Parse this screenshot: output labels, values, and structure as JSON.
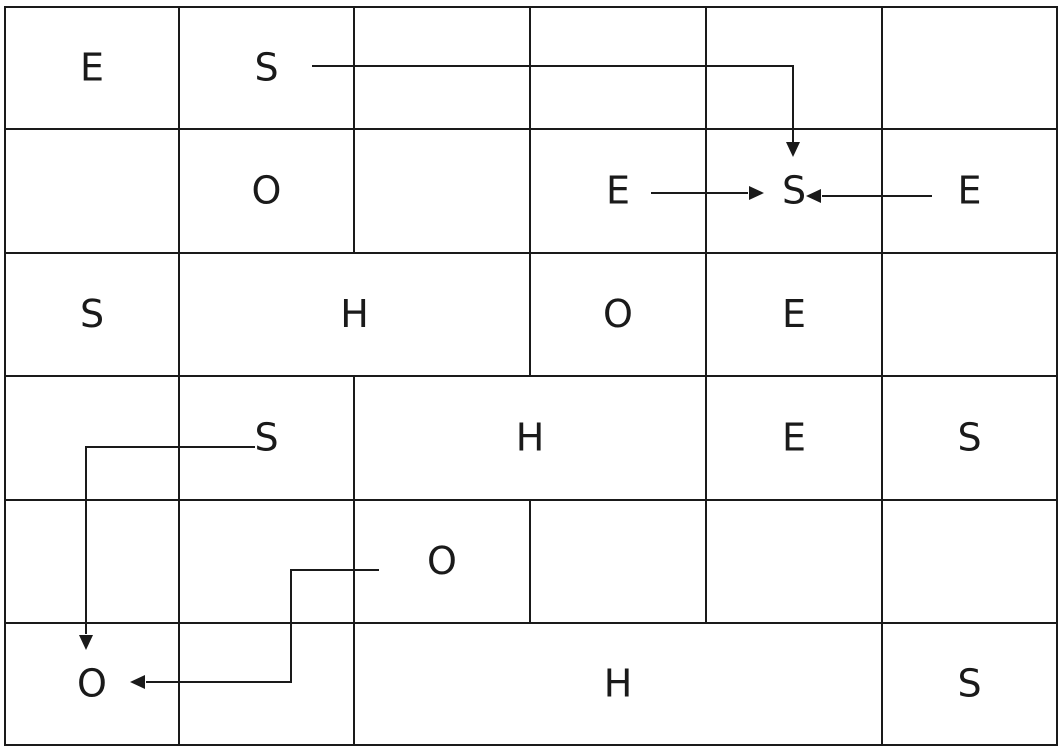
{
  "grid": {
    "rows": 6,
    "cols": 6,
    "line_color": "#1a1a1a",
    "text_color": "#1a1a1a",
    "background": "#ffffff",
    "cells": [
      {
        "id": "r0c0",
        "row": 0,
        "col": 0,
        "colspan": 1,
        "letter": "E"
      },
      {
        "id": "r0c1",
        "row": 0,
        "col": 1,
        "colspan": 1,
        "letter": "S"
      },
      {
        "id": "r0c2",
        "row": 0,
        "col": 2,
        "colspan": 1,
        "letter": ""
      },
      {
        "id": "r0c3",
        "row": 0,
        "col": 3,
        "colspan": 1,
        "letter": ""
      },
      {
        "id": "r0c4",
        "row": 0,
        "col": 4,
        "colspan": 1,
        "letter": ""
      },
      {
        "id": "r0c5",
        "row": 0,
        "col": 5,
        "colspan": 1,
        "letter": ""
      },
      {
        "id": "r1c0",
        "row": 1,
        "col": 0,
        "colspan": 1,
        "letter": ""
      },
      {
        "id": "r1c1",
        "row": 1,
        "col": 1,
        "colspan": 1,
        "letter": "O"
      },
      {
        "id": "r1c2",
        "row": 1,
        "col": 2,
        "colspan": 1,
        "letter": ""
      },
      {
        "id": "r1c3",
        "row": 1,
        "col": 3,
        "colspan": 1,
        "letter": "E"
      },
      {
        "id": "r1c4",
        "row": 1,
        "col": 4,
        "colspan": 1,
        "letter": "S"
      },
      {
        "id": "r1c5",
        "row": 1,
        "col": 5,
        "colspan": 1,
        "letter": "E"
      },
      {
        "id": "r2c0",
        "row": 2,
        "col": 0,
        "colspan": 1,
        "letter": "S"
      },
      {
        "id": "r2c1",
        "row": 2,
        "col": 1,
        "colspan": 2,
        "letter": "H"
      },
      {
        "id": "r2c3",
        "row": 2,
        "col": 3,
        "colspan": 1,
        "letter": "O"
      },
      {
        "id": "r2c4",
        "row": 2,
        "col": 4,
        "colspan": 1,
        "letter": "E"
      },
      {
        "id": "r2c5",
        "row": 2,
        "col": 5,
        "colspan": 1,
        "letter": ""
      },
      {
        "id": "r3c0",
        "row": 3,
        "col": 0,
        "colspan": 1,
        "letter": ""
      },
      {
        "id": "r3c1",
        "row": 3,
        "col": 1,
        "colspan": 1,
        "letter": "S"
      },
      {
        "id": "r3c2",
        "row": 3,
        "col": 2,
        "colspan": 2,
        "letter": "H"
      },
      {
        "id": "r3c4",
        "row": 3,
        "col": 4,
        "colspan": 1,
        "letter": "E"
      },
      {
        "id": "r3c5",
        "row": 3,
        "col": 5,
        "colspan": 1,
        "letter": "S"
      },
      {
        "id": "r4c0",
        "row": 4,
        "col": 0,
        "colspan": 1,
        "letter": ""
      },
      {
        "id": "r4c1",
        "row": 4,
        "col": 1,
        "colspan": 1,
        "letter": ""
      },
      {
        "id": "r4c2",
        "row": 4,
        "col": 2,
        "colspan": 1,
        "letter": "O"
      },
      {
        "id": "r4c3",
        "row": 4,
        "col": 3,
        "colspan": 1,
        "letter": ""
      },
      {
        "id": "r4c4",
        "row": 4,
        "col": 4,
        "colspan": 1,
        "letter": ""
      },
      {
        "id": "r4c5",
        "row": 4,
        "col": 5,
        "colspan": 1,
        "letter": ""
      },
      {
        "id": "r5c0",
        "row": 5,
        "col": 0,
        "colspan": 1,
        "letter": "O"
      },
      {
        "id": "r5c1",
        "row": 5,
        "col": 1,
        "colspan": 1,
        "letter": ""
      },
      {
        "id": "r5c2",
        "row": 5,
        "col": 2,
        "colspan": 3,
        "letter": "H"
      },
      {
        "id": "r5c5",
        "row": 5,
        "col": 5,
        "colspan": 1,
        "letter": "S"
      }
    ]
  },
  "arrows": [
    {
      "id": "arrow-s-to-s",
      "from_cell": "r0c1",
      "to_cell": "r1c4"
    },
    {
      "id": "arrow-e-to-s-left",
      "from_cell": "r1c3",
      "to_cell": "r1c4"
    },
    {
      "id": "arrow-e-to-s-right",
      "from_cell": "r1c5",
      "to_cell": "r1c4"
    },
    {
      "id": "arrow-s-to-o",
      "from_cell": "r3c1",
      "to_cell": "r5c0"
    },
    {
      "id": "arrow-o-to-o",
      "from_cell": "r4c2",
      "to_cell": "r5c0"
    }
  ]
}
